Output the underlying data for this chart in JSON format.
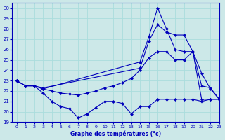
{
  "xlabel": "Graphe des températures (°c)",
  "xlim": [
    -0.5,
    23
  ],
  "ylim": [
    19,
    30.5
  ],
  "yticks": [
    19,
    20,
    21,
    22,
    23,
    24,
    25,
    26,
    27,
    28,
    29,
    30
  ],
  "xticks": [
    0,
    1,
    2,
    3,
    4,
    5,
    6,
    7,
    8,
    9,
    10,
    11,
    12,
    13,
    14,
    15,
    16,
    17,
    18,
    19,
    20,
    21,
    22,
    23
  ],
  "bg_color": "#cce8e8",
  "line_color": "#0000bb",
  "grid_color": "#aadddd",
  "line1_x": [
    0,
    1,
    2,
    3,
    4,
    5,
    6,
    7,
    8,
    9,
    10,
    11,
    12,
    13,
    14,
    15,
    16,
    17,
    18,
    19,
    20,
    21,
    22,
    23
  ],
  "line1_y": [
    23,
    22.5,
    22.5,
    21.8,
    21.0,
    20.5,
    20.3,
    19.4,
    19.8,
    20.4,
    21.0,
    21.0,
    20.8,
    19.8,
    20.5,
    20.5,
    21.2,
    21.2,
    21.2,
    21.2,
    21.2,
    21.0,
    21.2,
    21.2
  ],
  "line2_x": [
    0,
    1,
    2,
    3,
    4,
    5,
    6,
    7,
    8,
    9,
    10,
    11,
    12,
    13,
    14,
    15,
    16,
    17,
    18,
    19,
    20,
    21,
    22,
    23
  ],
  "line2_y": [
    23,
    22.5,
    22.5,
    22.2,
    22.0,
    21.8,
    21.7,
    21.6,
    21.8,
    22.0,
    22.3,
    22.5,
    22.8,
    23.2,
    24.0,
    25.2,
    25.8,
    25.8,
    25.0,
    25.0,
    25.8,
    21.2,
    21.2,
    21.2
  ],
  "line3_x": [
    0,
    1,
    2,
    3,
    14,
    15,
    16,
    17,
    18,
    19,
    20,
    21,
    22,
    23
  ],
  "line3_y": [
    23,
    22.5,
    22.5,
    22.3,
    24.2,
    26.8,
    28.4,
    27.7,
    27.4,
    27.4,
    25.8,
    22.5,
    22.3,
    21.2
  ],
  "line4_x": [
    0,
    1,
    2,
    3,
    14,
    15,
    16,
    17,
    18,
    19,
    20,
    21,
    22,
    23
  ],
  "line4_y": [
    23,
    22.5,
    22.5,
    22.2,
    24.8,
    27.2,
    30.0,
    28.0,
    26.0,
    25.8,
    25.8,
    23.7,
    22.2,
    21.2
  ]
}
